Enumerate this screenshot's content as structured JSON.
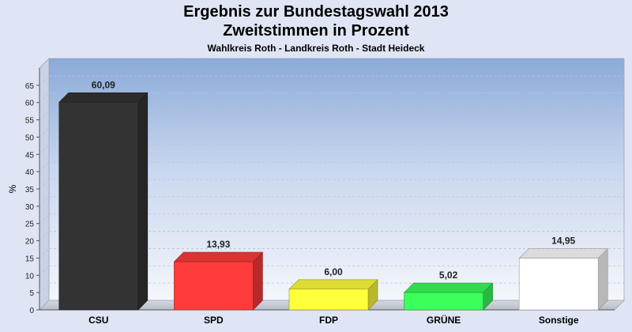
{
  "chart_data": {
    "type": "bar",
    "title": "Ergebnis zur Bundestagswahl 2013",
    "subtitle": "Zweitstimmen in Prozent",
    "subtitle2": "Wahlkreis Roth - Landkreis Roth - Stadt Heideck",
    "ylabel": "%",
    "xlabel": "",
    "ylim": [
      0,
      70
    ],
    "yticks": [
      0,
      5,
      10,
      15,
      20,
      25,
      30,
      35,
      40,
      45,
      50,
      55,
      60,
      65
    ],
    "grid": true,
    "categories": [
      "CSU",
      "SPD",
      "FDP",
      "GRÜNE",
      "Sonstige"
    ],
    "values": [
      60.09,
      13.93,
      6.0,
      5.02,
      14.95
    ],
    "value_labels": [
      "60,09",
      "13,93",
      "6,00",
      "5,02",
      "14,95"
    ],
    "colors": [
      "#333333",
      "#ff3b3b",
      "#ffff3b",
      "#3bff5b",
      "#ffffff"
    ]
  }
}
